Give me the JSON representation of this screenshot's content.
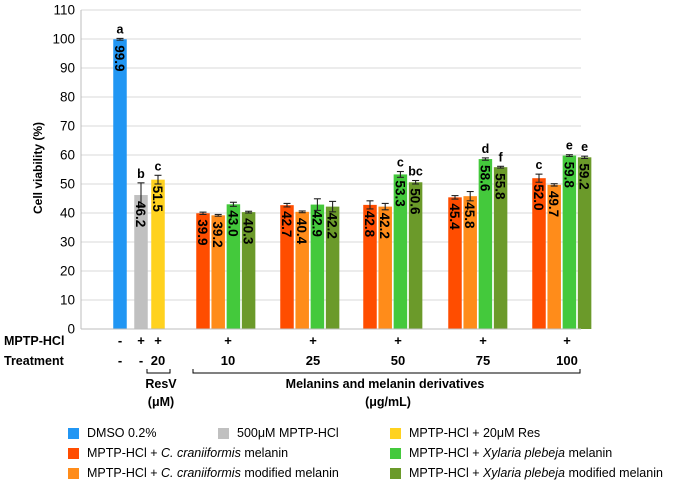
{
  "chart_data": {
    "type": "bar",
    "ylabel": "Cell viability (%)",
    "ylim": [
      0,
      110
    ],
    "yticks": [
      "0",
      "10",
      "20",
      "30",
      "40",
      "50",
      "60",
      "70",
      "80",
      "90",
      "100",
      "110"
    ],
    "grid": true,
    "series_colors": {
      "dmso": "#2196f3",
      "mptp": "#c0c0c0",
      "res": "#ffd21f",
      "cc": "#ff4d00",
      "ccm": "#ff8c1a",
      "xp": "#44c93c",
      "xpm": "#6b9a2a"
    },
    "controls": [
      {
        "series": "dmso",
        "value": 99.9,
        "error": 0.3,
        "label": "99.9",
        "letter": "a"
      },
      {
        "series": "mptp",
        "value": 46.2,
        "error": 4.2,
        "label": "46.2",
        "letter": "b"
      },
      {
        "series": "res",
        "value": 51.5,
        "error": 1.5,
        "label": "51.5",
        "letter": "c"
      }
    ],
    "groups": [
      {
        "treatment": "10",
        "bars": [
          {
            "series": "cc",
            "value": 39.9,
            "error": 0.4,
            "label": "39.9",
            "letter": ""
          },
          {
            "series": "ccm",
            "value": 39.2,
            "error": 0.3,
            "label": "39.2",
            "letter": ""
          },
          {
            "series": "xp",
            "value": 43.0,
            "error": 0.7,
            "label": "43.0",
            "letter": ""
          },
          {
            "series": "xpm",
            "value": 40.3,
            "error": 0.3,
            "label": "40.3",
            "letter": ""
          }
        ]
      },
      {
        "treatment": "25",
        "bars": [
          {
            "series": "cc",
            "value": 42.7,
            "error": 0.6,
            "label": "42.7",
            "letter": ""
          },
          {
            "series": "ccm",
            "value": 40.4,
            "error": 0.3,
            "label": "40.4",
            "letter": ""
          },
          {
            "series": "xp",
            "value": 42.9,
            "error": 2.0,
            "label": "42.9",
            "letter": ""
          },
          {
            "series": "xpm",
            "value": 42.2,
            "error": 1.8,
            "label": "42.2",
            "letter": ""
          }
        ]
      },
      {
        "treatment": "50",
        "bars": [
          {
            "series": "cc",
            "value": 42.8,
            "error": 1.4,
            "label": "42.8",
            "letter": ""
          },
          {
            "series": "ccm",
            "value": 42.2,
            "error": 1.1,
            "label": "42.2",
            "letter": ""
          },
          {
            "series": "xp",
            "value": 53.3,
            "error": 1.0,
            "label": "53.3",
            "letter": "c"
          },
          {
            "series": "xpm",
            "value": 50.6,
            "error": 0.6,
            "label": "50.6",
            "letter": "bc"
          }
        ]
      },
      {
        "treatment": "75",
        "bars": [
          {
            "series": "cc",
            "value": 45.4,
            "error": 0.6,
            "label": "45.4",
            "letter": ""
          },
          {
            "series": "ccm",
            "value": 45.8,
            "error": 1.6,
            "label": "45.8",
            "letter": ""
          },
          {
            "series": "xp",
            "value": 58.6,
            "error": 0.4,
            "label": "58.6",
            "letter": "d"
          },
          {
            "series": "xpm",
            "value": 55.8,
            "error": 0.3,
            "label": "55.8",
            "letter": "f"
          }
        ]
      },
      {
        "treatment": "100",
        "bars": [
          {
            "series": "cc",
            "value": 52.0,
            "error": 1.4,
            "label": "52.0",
            "letter": "c"
          },
          {
            "series": "ccm",
            "value": 49.7,
            "error": 0.4,
            "label": "49.7",
            "letter": ""
          },
          {
            "series": "xp",
            "value": 59.8,
            "error": 0.3,
            "label": "59.8",
            "letter": "e"
          },
          {
            "series": "xpm",
            "value": 59.2,
            "error": 0.4,
            "label": "59.2",
            "letter": "e"
          }
        ]
      }
    ],
    "row_labels": {
      "mptp": "MPTP-HCl",
      "treatment": "Treatment"
    },
    "mptp_signs": [
      "-",
      "+",
      "+",
      "+",
      "+",
      "+",
      "+",
      "+"
    ],
    "treatment_values": [
      "-",
      "-",
      "20",
      "10",
      "25",
      "50",
      "75",
      "100"
    ],
    "resv_label": {
      "line1": "ResV",
      "line2": "(μM)"
    },
    "melanin_label": {
      "line1": "Melanins and melanin derivatives",
      "line2": "(μg/mL)"
    }
  },
  "legend": {
    "items": [
      {
        "series": "dmso",
        "text": "DMSO 0.2%"
      },
      {
        "series": "mptp",
        "text": "500μM MPTP-HCl"
      },
      {
        "series": "res",
        "text": "MPTP-HCl + 20μM Res"
      },
      {
        "series": "cc",
        "prefix": "MPTP-HCl + ",
        "italic": "C. craniiformis",
        "suffix": " melanin"
      },
      {
        "series": "xp",
        "prefix": "MPTP-HCl + ",
        "italic": "Xylaria plebeja",
        "suffix": " melanin"
      },
      {
        "series": "ccm",
        "prefix": "MPTP-HCl + ",
        "italic": "C. craniiformis",
        "suffix": " modified melanin"
      },
      {
        "series": "xpm",
        "prefix": "MPTP-HCl + ",
        "italic": "Xylaria plebeja",
        "suffix": " modified melanin"
      }
    ]
  }
}
